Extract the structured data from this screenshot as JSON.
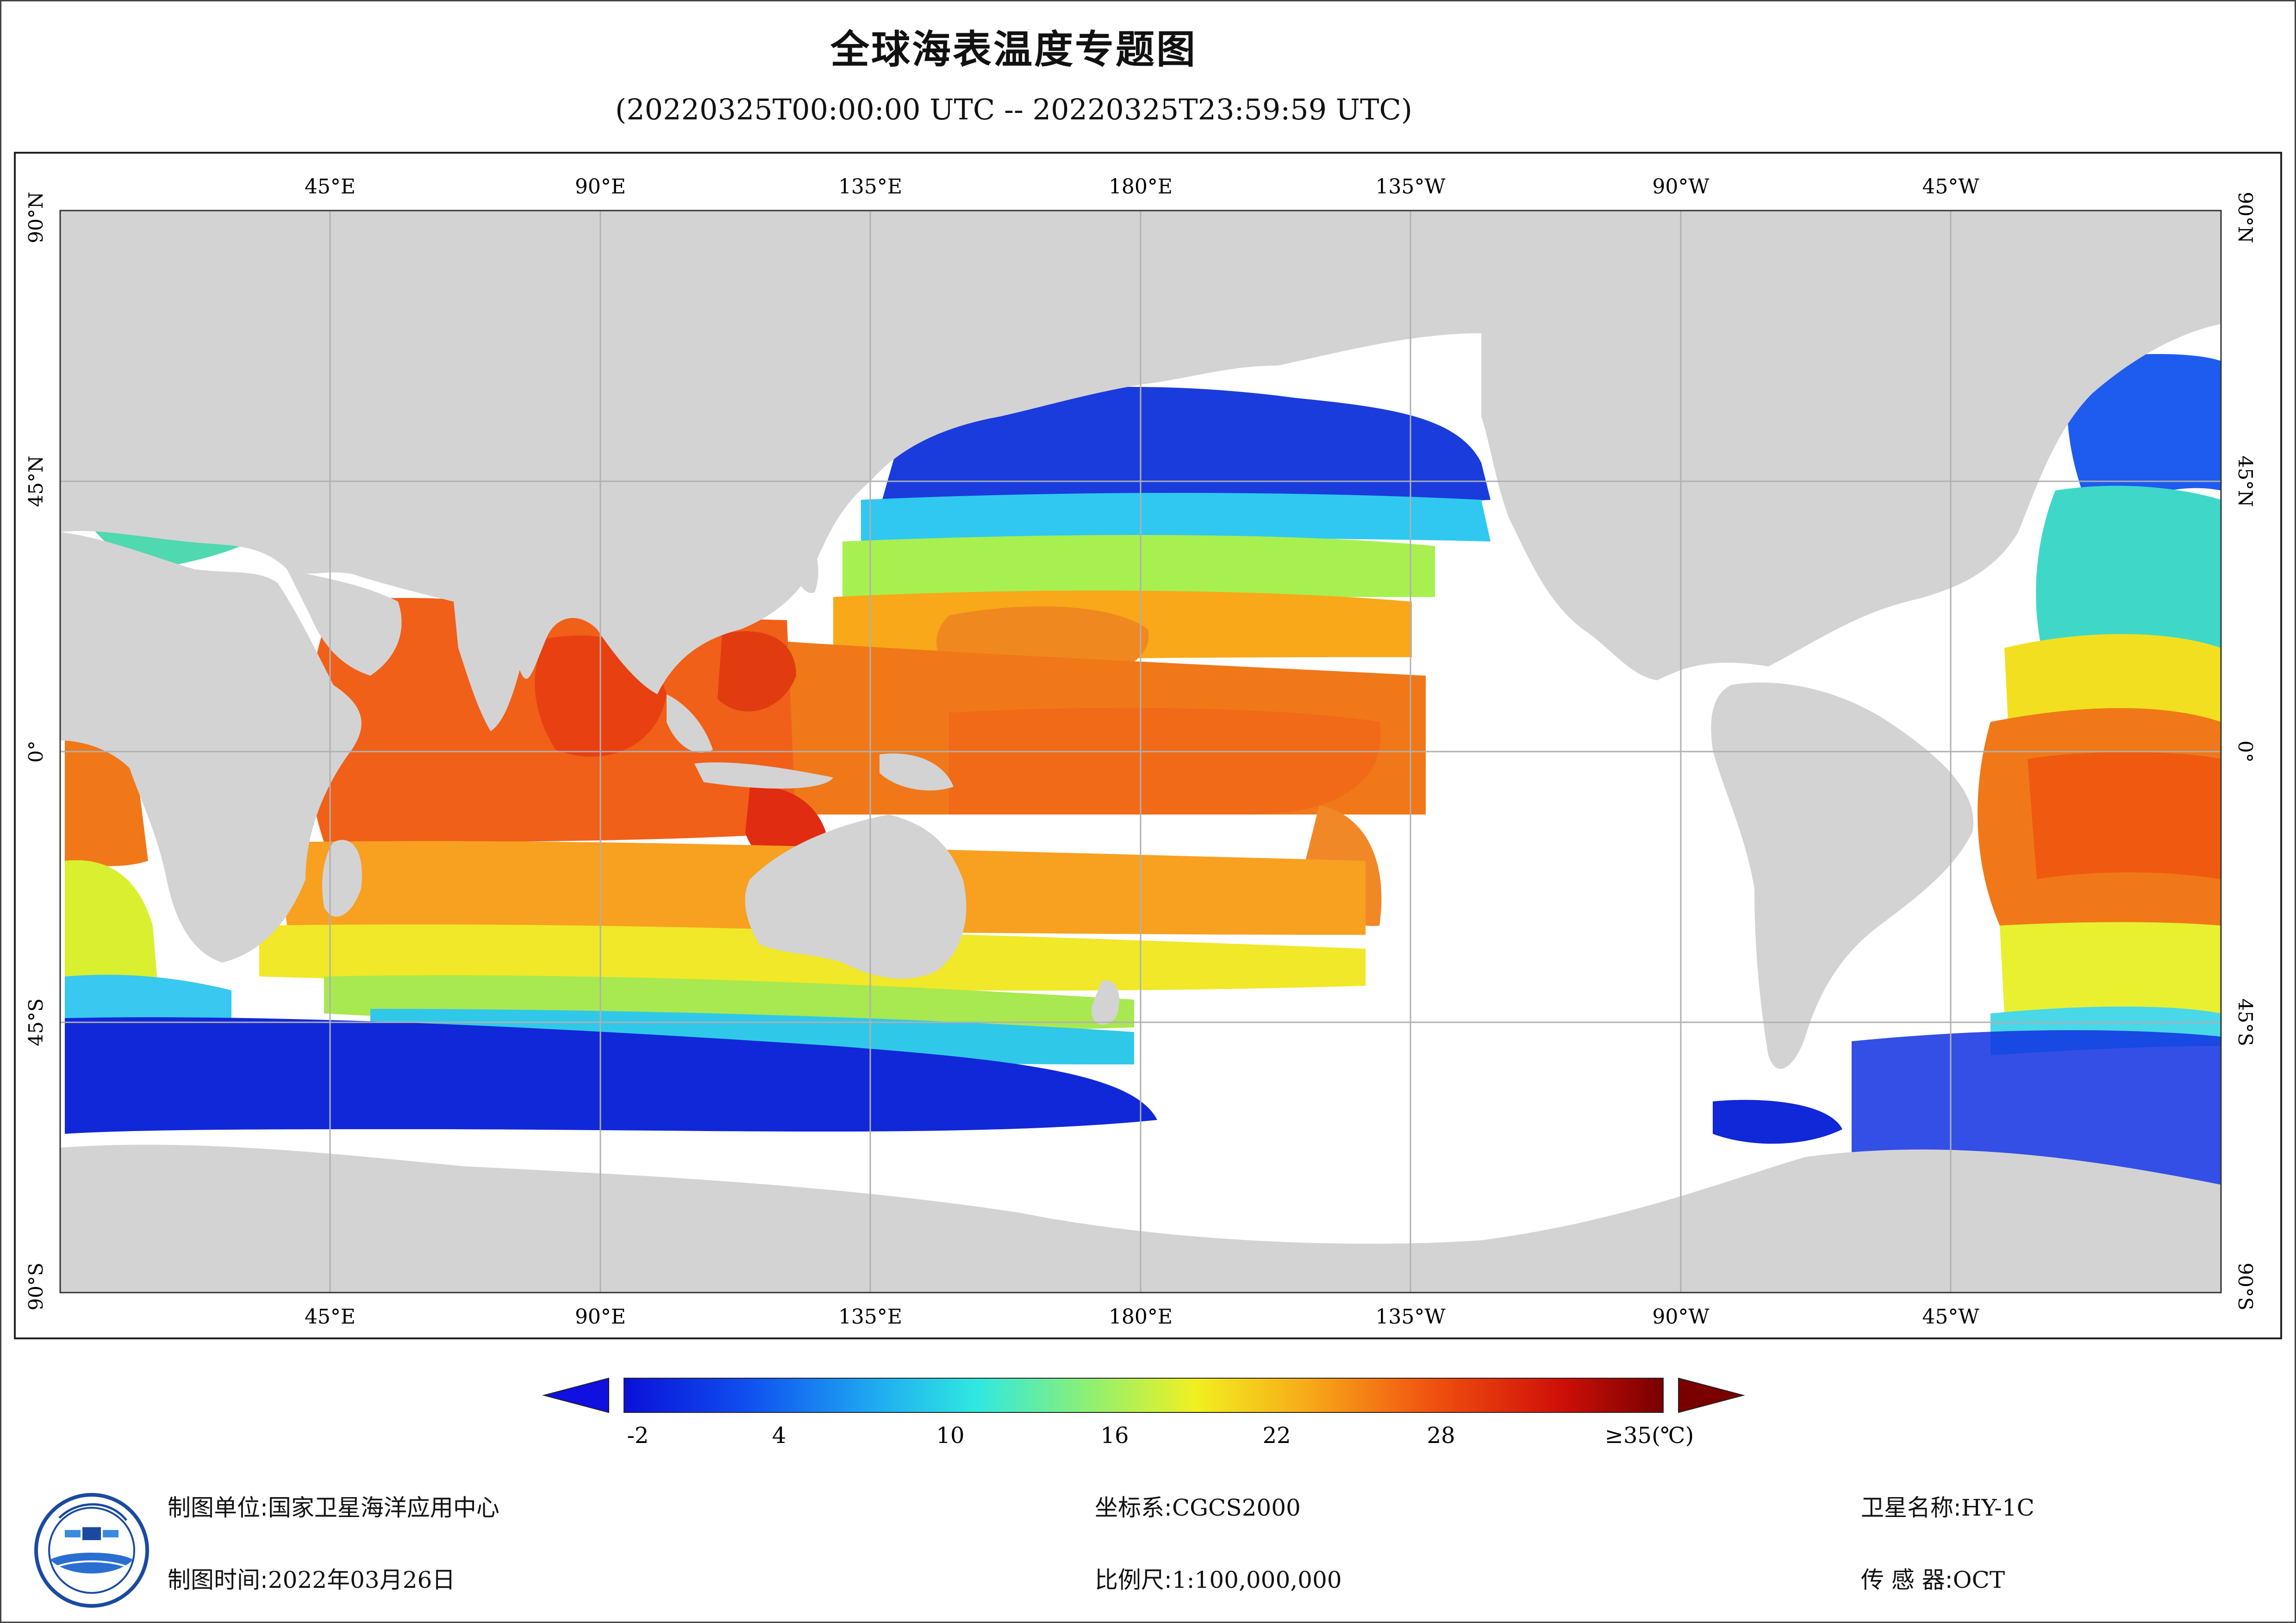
{
  "title": "全球海表温度专题图",
  "subtitle": "(20220325T00:00:00 UTC -- 20220325T23:59:59 UTC)",
  "map": {
    "lon_labels": [
      "45°E",
      "90°E",
      "135°E",
      "180°E",
      "135°W",
      "90°W",
      "45°W"
    ],
    "lat_labels": [
      "90°N",
      "45°N",
      "0°",
      "45°S",
      "90°S"
    ],
    "colors": {
      "land": "#d3d3d3",
      "ocean_nodata": "#ffffff",
      "grid": "#b0b0b0"
    }
  },
  "legend": {
    "ticks": [
      "-2",
      "4",
      "10",
      "16",
      "22",
      "28",
      "≥35(℃)"
    ],
    "min": -2,
    "max": 35,
    "unit": "℃"
  },
  "footer": {
    "org_label": "制图单位:",
    "org_value": "国家卫星海洋应用中心",
    "date_label": "制图时间:",
    "date_value": "2022年03月26日",
    "crs_label": "坐标系:",
    "crs_value": "CGCS2000",
    "scale_label": "比例尺:",
    "scale_value": "1:100,000,000",
    "sat_label": "卫星名称:",
    "sat_value": "HY-1C",
    "sensor_label": "传 感 器:",
    "sensor_value": "OCT"
  }
}
